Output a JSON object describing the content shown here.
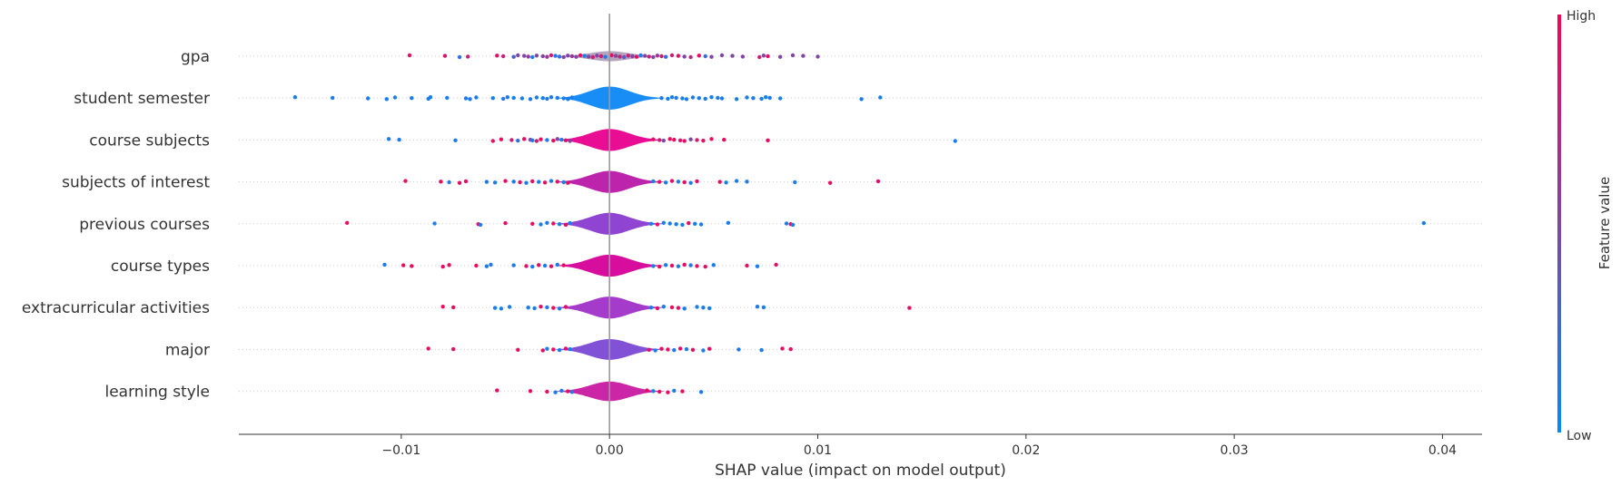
{
  "chart_data": {
    "type": "scatter",
    "subtype": "shap-violin-summary",
    "title": "",
    "xlabel": "SHAP value (impact on model output)",
    "ylabel": "",
    "xlim": [
      -0.0178,
      0.0419
    ],
    "xticks": [
      -0.01,
      0.0,
      0.01,
      0.02,
      0.03,
      0.04
    ],
    "xtick_labels": [
      "−0.01",
      "0.00",
      "0.01",
      "0.02",
      "0.03",
      "0.04"
    ],
    "zero_line": 0.0,
    "grid": false,
    "colorbar": {
      "label": "Feature value",
      "high_label": "High",
      "low_label": "Low",
      "low_color": "#008bfb",
      "high_color": "#ff0051"
    },
    "features": [
      {
        "name": "gpa",
        "violin_color": "#b0a0b8",
        "violin_width": 0.2,
        "points": [
          [
            -0.0096,
            0.9
          ],
          [
            -0.0079,
            0.85
          ],
          [
            -0.0068,
            0.8
          ],
          [
            -0.0072,
            0.2
          ],
          [
            -0.0054,
            0.9
          ],
          [
            -0.0051,
            0.75
          ],
          [
            -0.0046,
            0.3
          ],
          [
            -0.0044,
            0.5
          ],
          [
            -0.0041,
            0.5
          ],
          [
            -0.0039,
            0.6
          ],
          [
            -0.0037,
            0.1
          ],
          [
            -0.0035,
            0.5
          ],
          [
            -0.0032,
            0.5
          ],
          [
            -0.003,
            0.6
          ],
          [
            -0.0028,
            0.8
          ],
          [
            -0.0026,
            0.15
          ],
          [
            -0.0024,
            0.2
          ],
          [
            -0.0022,
            0.5
          ],
          [
            -0.002,
            0.5
          ],
          [
            -0.0018,
            0.6
          ],
          [
            -0.0016,
            0.5
          ],
          [
            -0.0014,
            0.9
          ],
          [
            -0.0012,
            0.1
          ],
          [
            -0.001,
            0.5
          ],
          [
            -0.0008,
            0.8
          ],
          [
            -0.0006,
            0.5
          ],
          [
            -0.0004,
            0.8
          ],
          [
            -0.0002,
            0.1
          ],
          [
            0.0001,
            0.9
          ],
          [
            0.0003,
            0.5
          ],
          [
            0.0005,
            0.8
          ],
          [
            0.0007,
            0.3
          ],
          [
            0.0009,
            0.8
          ],
          [
            0.0011,
            0.5
          ],
          [
            0.0013,
            0.9
          ],
          [
            0.0015,
            0.1
          ],
          [
            0.0017,
            0.5
          ],
          [
            0.0019,
            0.8
          ],
          [
            0.0021,
            0.5
          ],
          [
            0.0023,
            0.6
          ],
          [
            0.0025,
            0.8
          ],
          [
            0.0027,
            0.2
          ],
          [
            0.003,
            0.8
          ],
          [
            0.0033,
            0.9
          ],
          [
            0.0036,
            0.5
          ],
          [
            0.0039,
            0.7
          ],
          [
            0.0043,
            0.9
          ],
          [
            0.0046,
            0.2
          ],
          [
            0.0049,
            0.5
          ],
          [
            0.0054,
            0.5
          ],
          [
            0.0059,
            0.5
          ],
          [
            0.0064,
            0.5
          ],
          [
            0.0072,
            0.8
          ],
          [
            0.0074,
            0.5
          ],
          [
            0.0076,
            0.9
          ],
          [
            0.0082,
            0.5
          ],
          [
            0.0088,
            0.5
          ],
          [
            0.0093,
            0.5
          ],
          [
            0.01,
            0.5
          ]
        ]
      },
      {
        "name": "student semester",
        "violin_color": "#0d87f5",
        "violin_width": 0.75,
        "points": [
          [
            -0.0151,
            0.1
          ],
          [
            -0.0133,
            0.1
          ],
          [
            -0.0116,
            0.1
          ],
          [
            -0.0107,
            0.1
          ],
          [
            -0.0103,
            0.1
          ],
          [
            -0.0095,
            0.1
          ],
          [
            -0.0087,
            0.1
          ],
          [
            -0.0086,
            0.1
          ],
          [
            -0.0078,
            0.1
          ],
          [
            -0.0069,
            0.1
          ],
          [
            -0.0067,
            0.1
          ],
          [
            -0.0064,
            0.1
          ],
          [
            -0.0056,
            0.1
          ],
          [
            -0.0051,
            0.1
          ],
          [
            -0.0049,
            0.1
          ],
          [
            -0.0046,
            0.1
          ],
          [
            -0.0042,
            0.1
          ],
          [
            -0.0038,
            0.1
          ],
          [
            -0.0035,
            0.1
          ],
          [
            -0.0032,
            0.1
          ],
          [
            -0.003,
            0.1
          ],
          [
            -0.0028,
            0.1
          ],
          [
            -0.0025,
            0.1
          ],
          [
            -0.0022,
            0.1
          ],
          [
            -0.002,
            0.1
          ],
          [
            -0.0018,
            0.1
          ],
          [
            0.0025,
            0.1
          ],
          [
            0.0028,
            0.1
          ],
          [
            0.003,
            0.1
          ],
          [
            0.0032,
            0.1
          ],
          [
            0.0035,
            0.1
          ],
          [
            0.0037,
            0.1
          ],
          [
            0.004,
            0.1
          ],
          [
            0.0043,
            0.1
          ],
          [
            0.0046,
            0.1
          ],
          [
            0.0049,
            0.1
          ],
          [
            0.0052,
            0.1
          ],
          [
            0.0054,
            0.1
          ],
          [
            0.0061,
            0.1
          ],
          [
            0.0066,
            0.1
          ],
          [
            0.0069,
            0.1
          ],
          [
            0.0073,
            0.1
          ],
          [
            0.0075,
            0.1
          ],
          [
            0.0077,
            0.1
          ],
          [
            0.0082,
            0.1
          ],
          [
            0.0121,
            0.1
          ],
          [
            0.013,
            0.1
          ]
        ]
      },
      {
        "name": "course subjects",
        "violin_color": "#e8008e",
        "violin_width": 0.7,
        "points": [
          [
            -0.0106,
            0.1
          ],
          [
            -0.0101,
            0.1
          ],
          [
            -0.0074,
            0.1
          ],
          [
            -0.0056,
            0.9
          ],
          [
            -0.0052,
            0.9
          ],
          [
            -0.0047,
            0.8
          ],
          [
            -0.0044,
            0.2
          ],
          [
            -0.0041,
            0.9
          ],
          [
            -0.0038,
            0.5
          ],
          [
            -0.0037,
            0.1
          ],
          [
            -0.0035,
            0.8
          ],
          [
            -0.0033,
            0.9
          ],
          [
            -0.003,
            0.1
          ],
          [
            -0.0027,
            0.9
          ],
          [
            -0.0025,
            0.5
          ],
          [
            -0.0023,
            0.1
          ],
          [
            -0.0021,
            0.9
          ],
          [
            -0.0019,
            0.5
          ],
          [
            0.0021,
            0.9
          ],
          [
            0.0024,
            0.8
          ],
          [
            0.0026,
            0.5
          ],
          [
            0.0029,
            0.9
          ],
          [
            0.0031,
            0.9
          ],
          [
            0.0034,
            0.8
          ],
          [
            0.0036,
            0.9
          ],
          [
            0.0039,
            0.5
          ],
          [
            0.0042,
            0.8
          ],
          [
            0.0045,
            0.9
          ],
          [
            0.0049,
            0.9
          ],
          [
            0.0055,
            0.9
          ],
          [
            0.0076,
            0.9
          ],
          [
            0.0166,
            0.1
          ]
        ]
      },
      {
        "name": "subjects of interest",
        "violin_color": "#b818a8",
        "violin_width": 0.7,
        "points": [
          [
            -0.0098,
            0.9
          ],
          [
            -0.0081,
            0.9
          ],
          [
            -0.0077,
            0.1
          ],
          [
            -0.0072,
            0.9
          ],
          [
            -0.0069,
            0.9
          ],
          [
            -0.0059,
            0.1
          ],
          [
            -0.0055,
            0.1
          ],
          [
            -0.005,
            0.9
          ],
          [
            -0.0046,
            0.1
          ],
          [
            -0.0043,
            0.9
          ],
          [
            -0.004,
            0.1
          ],
          [
            -0.0037,
            0.9
          ],
          [
            -0.0034,
            0.1
          ],
          [
            -0.0031,
            0.9
          ],
          [
            -0.0028,
            0.1
          ],
          [
            -0.0025,
            0.9
          ],
          [
            -0.0022,
            0.1
          ],
          [
            -0.002,
            0.9
          ],
          [
            0.0021,
            0.1
          ],
          [
            0.0024,
            0.9
          ],
          [
            0.0027,
            0.1
          ],
          [
            0.003,
            0.9
          ],
          [
            0.0033,
            0.1
          ],
          [
            0.0036,
            0.9
          ],
          [
            0.0039,
            0.1
          ],
          [
            0.0042,
            0.9
          ],
          [
            0.0053,
            0.9
          ],
          [
            0.0056,
            0.1
          ],
          [
            0.0061,
            0.1
          ],
          [
            0.0066,
            0.1
          ],
          [
            0.0089,
            0.1
          ],
          [
            0.0106,
            0.9
          ],
          [
            0.0129,
            0.9
          ]
        ]
      },
      {
        "name": "previous courses",
        "violin_color": "#8a3bd0",
        "violin_width": 0.7,
        "points": [
          [
            -0.0126,
            0.9
          ],
          [
            -0.0084,
            0.1
          ],
          [
            -0.0063,
            0.9
          ],
          [
            -0.0062,
            0.1
          ],
          [
            -0.005,
            0.9
          ],
          [
            -0.0037,
            0.9
          ],
          [
            -0.0033,
            0.1
          ],
          [
            -0.003,
            0.1
          ],
          [
            -0.0027,
            0.9
          ],
          [
            -0.0024,
            0.1
          ],
          [
            -0.0021,
            0.9
          ],
          [
            -0.0019,
            0.1
          ],
          [
            0.002,
            0.1
          ],
          [
            0.0023,
            0.9
          ],
          [
            0.0026,
            0.1
          ],
          [
            0.0029,
            0.1
          ],
          [
            0.0032,
            0.1
          ],
          [
            0.0035,
            0.1
          ],
          [
            0.0038,
            0.9
          ],
          [
            0.0041,
            0.1
          ],
          [
            0.0044,
            0.1
          ],
          [
            0.0057,
            0.1
          ],
          [
            0.0085,
            0.1
          ],
          [
            0.0087,
            0.9
          ],
          [
            0.0088,
            0.1
          ],
          [
            0.0391,
            0.1
          ]
        ]
      },
      {
        "name": "course types",
        "violin_color": "#d40098",
        "violin_width": 0.7,
        "points": [
          [
            -0.0108,
            0.1
          ],
          [
            -0.0099,
            0.9
          ],
          [
            -0.0095,
            0.9
          ],
          [
            -0.008,
            0.9
          ],
          [
            -0.0077,
            0.9
          ],
          [
            -0.0064,
            0.9
          ],
          [
            -0.0059,
            0.1
          ],
          [
            -0.0057,
            0.1
          ],
          [
            -0.0046,
            0.1
          ],
          [
            -0.004,
            0.9
          ],
          [
            -0.0037,
            0.1
          ],
          [
            -0.0034,
            0.9
          ],
          [
            -0.0031,
            0.1
          ],
          [
            -0.0028,
            0.9
          ],
          [
            -0.0025,
            0.1
          ],
          [
            -0.0022,
            0.9
          ],
          [
            0.0021,
            0.1
          ],
          [
            0.0024,
            0.9
          ],
          [
            0.0027,
            0.1
          ],
          [
            0.003,
            0.9
          ],
          [
            0.0033,
            0.1
          ],
          [
            0.0036,
            0.9
          ],
          [
            0.0039,
            0.1
          ],
          [
            0.0042,
            0.9
          ],
          [
            0.0046,
            0.9
          ],
          [
            0.005,
            0.1
          ],
          [
            0.0066,
            0.9
          ],
          [
            0.0071,
            0.1
          ],
          [
            0.008,
            0.9
          ]
        ]
      },
      {
        "name": "extracurricular activities",
        "violin_color": "#a030c8",
        "violin_width": 0.7,
        "points": [
          [
            -0.008,
            0.9
          ],
          [
            -0.0075,
            0.9
          ],
          [
            -0.0055,
            0.1
          ],
          [
            -0.0052,
            0.1
          ],
          [
            -0.0048,
            0.1
          ],
          [
            -0.0039,
            0.1
          ],
          [
            -0.0036,
            0.1
          ],
          [
            -0.0033,
            0.9
          ],
          [
            -0.003,
            0.1
          ],
          [
            -0.0027,
            0.9
          ],
          [
            -0.0024,
            0.1
          ],
          [
            -0.0021,
            0.9
          ],
          [
            0.002,
            0.1
          ],
          [
            0.0023,
            0.9
          ],
          [
            0.0026,
            0.1
          ],
          [
            0.003,
            0.9
          ],
          [
            0.0033,
            0.9
          ],
          [
            0.0036,
            0.1
          ],
          [
            0.0042,
            0.1
          ],
          [
            0.0045,
            0.1
          ],
          [
            0.0048,
            0.1
          ],
          [
            0.0071,
            0.1
          ],
          [
            0.0074,
            0.1
          ],
          [
            0.0144,
            0.9
          ]
        ]
      },
      {
        "name": "major",
        "violin_color": "#7a48d4",
        "violin_width": 0.65,
        "points": [
          [
            -0.0087,
            0.9
          ],
          [
            -0.0075,
            0.9
          ],
          [
            -0.0044,
            0.9
          ],
          [
            -0.0032,
            0.9
          ],
          [
            -0.003,
            0.1
          ],
          [
            -0.0027,
            0.9
          ],
          [
            -0.0024,
            0.1
          ],
          [
            -0.0021,
            0.9
          ],
          [
            -0.0019,
            0.1
          ],
          [
            0.0019,
            0.9
          ],
          [
            0.0022,
            0.1
          ],
          [
            0.0025,
            0.9
          ],
          [
            0.0028,
            0.9
          ],
          [
            0.0031,
            0.1
          ],
          [
            0.0034,
            0.9
          ],
          [
            0.0037,
            0.1
          ],
          [
            0.004,
            0.9
          ],
          [
            0.0045,
            0.1
          ],
          [
            0.0048,
            0.9
          ],
          [
            0.0062,
            0.1
          ],
          [
            0.0073,
            0.1
          ],
          [
            0.0083,
            0.9
          ],
          [
            0.0087,
            0.9
          ]
        ]
      },
      {
        "name": "learning style",
        "violin_color": "#c81aa0",
        "violin_width": 0.6,
        "points": [
          [
            -0.0054,
            0.9
          ],
          [
            -0.0038,
            0.9
          ],
          [
            -0.003,
            0.9
          ],
          [
            -0.0026,
            0.1
          ],
          [
            -0.0023,
            0.1
          ],
          [
            -0.002,
            0.9
          ],
          [
            -0.0018,
            0.1
          ],
          [
            0.0018,
            0.9
          ],
          [
            0.0021,
            0.1
          ],
          [
            0.0024,
            0.9
          ],
          [
            0.0028,
            0.9
          ],
          [
            0.0031,
            0.1
          ],
          [
            0.0035,
            0.9
          ],
          [
            0.0044,
            0.1
          ]
        ]
      }
    ]
  }
}
